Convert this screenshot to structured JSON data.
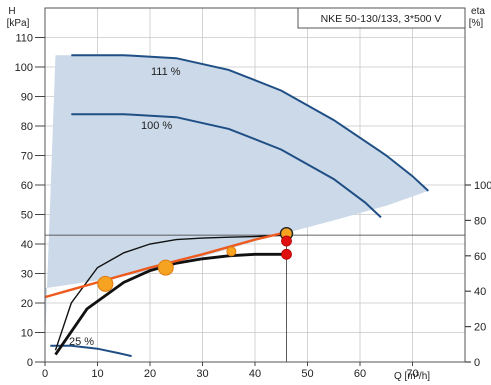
{
  "chart_data": {
    "type": "line",
    "title": "NKE 50-130/133, 3*500 V",
    "y_left_label_line1": "H",
    "y_left_label_line2": "[kPa]",
    "y_right_label_line1": "eta",
    "y_right_label_line2": "[%]",
    "x_label": "Q [m³/h]",
    "xlim": [
      0,
      80
    ],
    "ylim_left": [
      0,
      120
    ],
    "ylim_right": [
      0,
      200
    ],
    "x_ticks": [
      "0",
      "10",
      "20",
      "30",
      "40",
      "50",
      "60",
      "70"
    ],
    "y_left_ticks": [
      "0",
      "10",
      "20",
      "30",
      "40",
      "50",
      "60",
      "70",
      "80",
      "90",
      "100",
      "110"
    ],
    "y_right_ticks": [
      "0",
      "20",
      "40",
      "60",
      "80",
      "100"
    ],
    "grid": true,
    "operating_range_boundary": [
      [
        0,
        6
      ],
      [
        2,
        104
      ],
      [
        5,
        104
      ],
      [
        15,
        104
      ],
      [
        25,
        103
      ],
      [
        35,
        99
      ],
      [
        45,
        92
      ],
      [
        55,
        82
      ],
      [
        65,
        70
      ],
      [
        73,
        58
      ],
      [
        65,
        53
      ],
      [
        55,
        48
      ],
      [
        40,
        41
      ],
      [
        25,
        33
      ],
      [
        15,
        29
      ],
      [
        0,
        25
      ]
    ],
    "series": [
      {
        "name": "111 %",
        "points": [
          [
            5,
            104
          ],
          [
            15,
            104
          ],
          [
            25,
            103
          ],
          [
            35,
            99
          ],
          [
            45,
            92
          ],
          [
            55,
            82
          ],
          [
            65,
            70
          ],
          [
            70,
            63
          ],
          [
            73,
            58
          ]
        ]
      },
      {
        "name": "100 %",
        "points": [
          [
            5,
            84
          ],
          [
            15,
            84
          ],
          [
            25,
            83
          ],
          [
            35,
            79
          ],
          [
            45,
            72
          ],
          [
            55,
            62
          ],
          [
            61,
            54
          ],
          [
            64,
            49
          ]
        ]
      },
      {
        "name": "25 %",
        "points": [
          [
            1,
            5.5
          ],
          [
            5,
            5.5
          ],
          [
            10,
            4.5
          ],
          [
            14,
            3.0
          ],
          [
            16.5,
            2.0
          ]
        ]
      }
    ],
    "system_curve": [
      [
        0,
        22
      ],
      [
        5,
        24.5
      ],
      [
        10,
        27
      ],
      [
        20,
        32
      ],
      [
        30,
        36.5
      ],
      [
        40,
        41.5
      ],
      [
        46,
        44
      ]
    ],
    "efficiency_curves": [
      {
        "points": [
          [
            2,
            4
          ],
          [
            5,
            20
          ],
          [
            10,
            32
          ],
          [
            15,
            37
          ],
          [
            20,
            40
          ],
          [
            25,
            41.5
          ],
          [
            30,
            42
          ],
          [
            35,
            42.3
          ],
          [
            40,
            42.5
          ],
          [
            46,
            43
          ]
        ]
      },
      {
        "points": [
          [
            2,
            2.5
          ],
          [
            8,
            18
          ],
          [
            15,
            27
          ],
          [
            20,
            31
          ],
          [
            25,
            33.5
          ],
          [
            30,
            35
          ],
          [
            35,
            36
          ],
          [
            40,
            36.5
          ],
          [
            46,
            36.5
          ]
        ]
      }
    ],
    "operating_point_lines": {
      "q": 46,
      "h": 43
    },
    "markers": [
      {
        "x": 11.5,
        "y": 26.5,
        "kind": "large-orange"
      },
      {
        "x": 23,
        "y": 32,
        "kind": "large-orange"
      },
      {
        "x": 35.5,
        "y": 37.5,
        "kind": "small-orange"
      },
      {
        "x": 46,
        "y": 43.5,
        "kind": "ringed-orange"
      },
      {
        "x": 46,
        "y": 41,
        "kind": "red"
      },
      {
        "x": 46,
        "y": 36.5,
        "kind": "red"
      }
    ],
    "colors": {
      "range_fill": "#cbd9e9",
      "pump_curve": "#1f4f85",
      "system_curve": "#ee5a1e",
      "efficiency": "#111111",
      "marker_orange": "#f5a320",
      "marker_red": "#e01010",
      "grid": "#c8c8c8"
    }
  }
}
